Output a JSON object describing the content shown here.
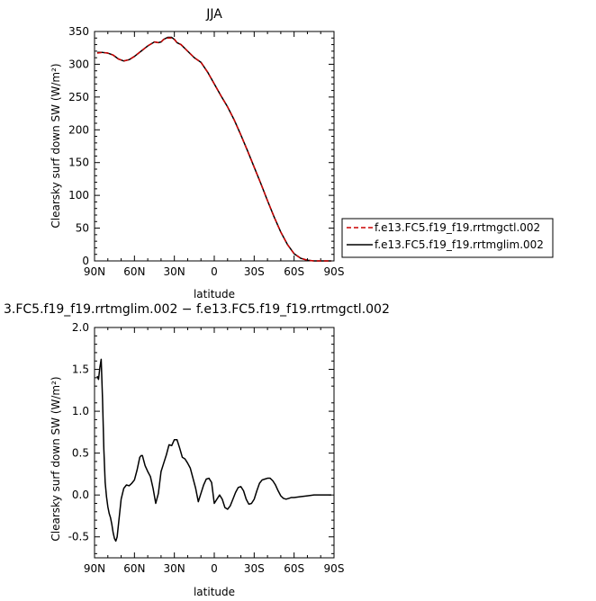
{
  "chart_data": [
    {
      "type": "line",
      "title": "JJA",
      "xlabel": "latitude",
      "ylabel": "Clearsky surf down SW (W/m²)",
      "xlim": [
        90,
        -90
      ],
      "ylim": [
        0,
        350
      ],
      "x_ticks": [
        {
          "value": 90,
          "label": "90N"
        },
        {
          "value": 60,
          "label": "60N"
        },
        {
          "value": 30,
          "label": "30N"
        },
        {
          "value": 0,
          "label": "0"
        },
        {
          "value": -30,
          "label": "30S"
        },
        {
          "value": -60,
          "label": "60S"
        },
        {
          "value": -90,
          "label": "90S"
        }
      ],
      "y_ticks": [
        {
          "value": 0,
          "label": "0"
        },
        {
          "value": 50,
          "label": "50"
        },
        {
          "value": 100,
          "label": "100"
        },
        {
          "value": 150,
          "label": "150"
        },
        {
          "value": 200,
          "label": "200"
        },
        {
          "value": 250,
          "label": "250"
        },
        {
          "value": 300,
          "label": "300"
        },
        {
          "value": 350,
          "label": "350"
        }
      ],
      "grid": false,
      "legend": {
        "placement": "right",
        "entries": [
          {
            "label": "f.e13.FC5.f19_f19.rrtmgctl.002",
            "color": "#cc0000",
            "dash": "dashed"
          },
          {
            "label": "f.e13.FC5.f19_f19.rrtmglim.002",
            "color": "#000000",
            "dash": "solid"
          }
        ]
      },
      "series": [
        {
          "name": "f.e13.FC5.f19_f19.rrtmgctl.002",
          "color": "#cc0000",
          "dash": "dashed",
          "x": [
            88,
            84,
            80,
            76,
            72,
            68,
            64,
            60,
            55,
            50,
            45,
            42,
            40,
            38,
            35,
            32,
            30,
            28,
            25,
            20,
            15,
            10,
            5,
            0,
            -5,
            -10,
            -15,
            -20,
            -25,
            -30,
            -35,
            -40,
            -45,
            -50,
            -55,
            -60,
            -65,
            -70,
            -75,
            -80,
            -84,
            -88
          ],
          "values": [
            317,
            318,
            317,
            314,
            308,
            305,
            307,
            312,
            320,
            328,
            334,
            333,
            334,
            338,
            340,
            340,
            338,
            333,
            330,
            320,
            310,
            303,
            288,
            270,
            252,
            235,
            215,
            192,
            168,
            143,
            118,
            92,
            67,
            44,
            25,
            11,
            4,
            1,
            0,
            0,
            0,
            0
          ]
        },
        {
          "name": "f.e13.FC5.f19_f19.rrtmglim.002",
          "color": "#000000",
          "dash": "solid",
          "x": [
            88,
            84,
            80,
            76,
            72,
            68,
            64,
            60,
            55,
            50,
            45,
            42,
            40,
            38,
            35,
            32,
            30,
            28,
            25,
            20,
            15,
            10,
            5,
            0,
            -5,
            -10,
            -15,
            -20,
            -25,
            -30,
            -35,
            -40,
            -45,
            -50,
            -55,
            -60,
            -65,
            -70,
            -75,
            -80,
            -84,
            -88
          ],
          "values": [
            318,
            318,
            317,
            314,
            308,
            305,
            307,
            312,
            320,
            328,
            334,
            333,
            334,
            338,
            341,
            341,
            338,
            333,
            330,
            320,
            310,
            303,
            288,
            270,
            252,
            235,
            215,
            192,
            168,
            143,
            118,
            92,
            67,
            44,
            25,
            11,
            4,
            1,
            0,
            0,
            0,
            0
          ]
        }
      ]
    },
    {
      "type": "line",
      "title": "3.FC5.f19_f19.rrtmglim.002 − f.e13.FC5.f19_f19.rrtmgctl.002",
      "xlabel": "latitude",
      "ylabel": "Clearsky surf down SW (W/m²)",
      "xlim": [
        90,
        -90
      ],
      "ylim": [
        -0.75,
        2.0
      ],
      "x_ticks": [
        {
          "value": 90,
          "label": "90N"
        },
        {
          "value": 60,
          "label": "60N"
        },
        {
          "value": 30,
          "label": "30N"
        },
        {
          "value": 0,
          "label": "0"
        },
        {
          "value": -30,
          "label": "30S"
        },
        {
          "value": -60,
          "label": "60S"
        },
        {
          "value": -90,
          "label": "90S"
        }
      ],
      "y_ticks": [
        {
          "value": -0.5,
          "label": "-0.5"
        },
        {
          "value": 0,
          "label": "0.0"
        },
        {
          "value": 0.5,
          "label": "0.5"
        },
        {
          "value": 1.0,
          "label": "1.0"
        },
        {
          "value": 1.5,
          "label": "1.5"
        },
        {
          "value": 2.0,
          "label": "2.0"
        }
      ],
      "grid": false,
      "series": [
        {
          "color": "#000000",
          "dash": "solid",
          "x": [
            88,
            87,
            86,
            85,
            84,
            83,
            82,
            81,
            80,
            79,
            78,
            77,
            76,
            75,
            74,
            73,
            72,
            71,
            70,
            68,
            66,
            64,
            62,
            60,
            58,
            56,
            55,
            54,
            52,
            50,
            48,
            46,
            44,
            42,
            40,
            38,
            36,
            34,
            32,
            30,
            28,
            26,
            24,
            22,
            20,
            18,
            16,
            14,
            12,
            10,
            8,
            6,
            4,
            2,
            0,
            -2,
            -4,
            -6,
            -8,
            -10,
            -12,
            -14,
            -16,
            -18,
            -20,
            -22,
            -24,
            -26,
            -28,
            -30,
            -32,
            -34,
            -36,
            -38,
            -40,
            -42,
            -44,
            -46,
            -48,
            -50,
            -52,
            -54,
            -56,
            -58,
            -60,
            -65,
            -70,
            -75,
            -80,
            -85,
            -88
          ],
          "values": [
            1.42,
            1.38,
            1.52,
            1.62,
            1.15,
            0.55,
            0.15,
            -0.02,
            -0.14,
            -0.22,
            -0.27,
            -0.35,
            -0.45,
            -0.52,
            -0.55,
            -0.5,
            -0.35,
            -0.2,
            -0.05,
            0.08,
            0.12,
            0.11,
            0.14,
            0.18,
            0.3,
            0.45,
            0.47,
            0.47,
            0.35,
            0.28,
            0.22,
            0.08,
            -0.1,
            0.02,
            0.28,
            0.38,
            0.48,
            0.6,
            0.59,
            0.66,
            0.66,
            0.56,
            0.45,
            0.43,
            0.38,
            0.32,
            0.2,
            0.08,
            -0.08,
            0.02,
            0.12,
            0.19,
            0.2,
            0.15,
            -0.1,
            -0.05,
            0.0,
            -0.05,
            -0.15,
            -0.17,
            -0.13,
            -0.05,
            0.03,
            0.09,
            0.1,
            0.05,
            -0.05,
            -0.11,
            -0.1,
            -0.05,
            0.05,
            0.14,
            0.18,
            0.19,
            0.2,
            0.2,
            0.17,
            0.12,
            0.05,
            -0.01,
            -0.04,
            -0.05,
            -0.04,
            -0.03,
            -0.03,
            -0.02,
            -0.01,
            0.0,
            0.0,
            0.0,
            0.0
          ]
        }
      ]
    }
  ]
}
